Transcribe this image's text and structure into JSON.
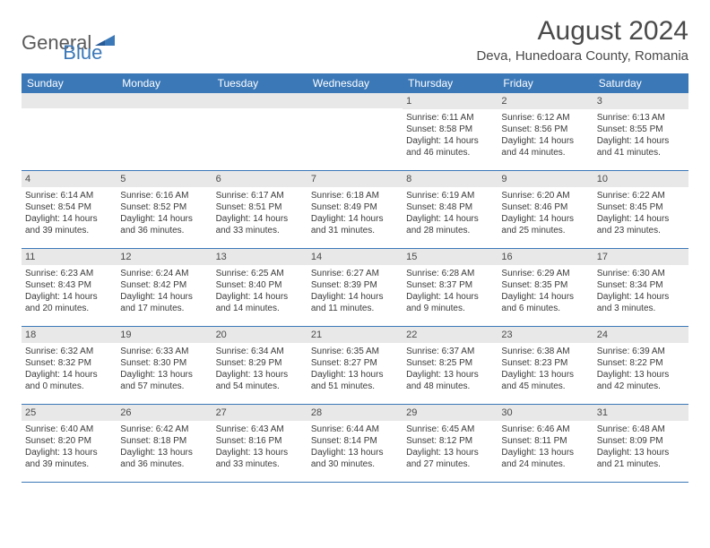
{
  "logo": {
    "part1": "General",
    "part2": "Blue"
  },
  "title": "August 2024",
  "location": "Deva, Hunedoara County, Romania",
  "colors": {
    "header_bg": "#3b78b8",
    "header_text": "#ffffff",
    "date_bar_bg": "#e8e8e8",
    "row_border": "#3b78b8",
    "body_text": "#3a3a3a",
    "title_text": "#4a4a4a",
    "logo_gray": "#5a5a5a",
    "logo_blue": "#3b78b8",
    "page_bg": "#ffffff"
  },
  "dayHeaders": [
    "Sunday",
    "Monday",
    "Tuesday",
    "Wednesday",
    "Thursday",
    "Friday",
    "Saturday"
  ],
  "weeks": [
    [
      {
        "date": "",
        "sunrise": "",
        "sunset": "",
        "daylight": ""
      },
      {
        "date": "",
        "sunrise": "",
        "sunset": "",
        "daylight": ""
      },
      {
        "date": "",
        "sunrise": "",
        "sunset": "",
        "daylight": ""
      },
      {
        "date": "",
        "sunrise": "",
        "sunset": "",
        "daylight": ""
      },
      {
        "date": "1",
        "sunrise": "Sunrise: 6:11 AM",
        "sunset": "Sunset: 8:58 PM",
        "daylight": "Daylight: 14 hours and 46 minutes."
      },
      {
        "date": "2",
        "sunrise": "Sunrise: 6:12 AM",
        "sunset": "Sunset: 8:56 PM",
        "daylight": "Daylight: 14 hours and 44 minutes."
      },
      {
        "date": "3",
        "sunrise": "Sunrise: 6:13 AM",
        "sunset": "Sunset: 8:55 PM",
        "daylight": "Daylight: 14 hours and 41 minutes."
      }
    ],
    [
      {
        "date": "4",
        "sunrise": "Sunrise: 6:14 AM",
        "sunset": "Sunset: 8:54 PM",
        "daylight": "Daylight: 14 hours and 39 minutes."
      },
      {
        "date": "5",
        "sunrise": "Sunrise: 6:16 AM",
        "sunset": "Sunset: 8:52 PM",
        "daylight": "Daylight: 14 hours and 36 minutes."
      },
      {
        "date": "6",
        "sunrise": "Sunrise: 6:17 AM",
        "sunset": "Sunset: 8:51 PM",
        "daylight": "Daylight: 14 hours and 33 minutes."
      },
      {
        "date": "7",
        "sunrise": "Sunrise: 6:18 AM",
        "sunset": "Sunset: 8:49 PM",
        "daylight": "Daylight: 14 hours and 31 minutes."
      },
      {
        "date": "8",
        "sunrise": "Sunrise: 6:19 AM",
        "sunset": "Sunset: 8:48 PM",
        "daylight": "Daylight: 14 hours and 28 minutes."
      },
      {
        "date": "9",
        "sunrise": "Sunrise: 6:20 AM",
        "sunset": "Sunset: 8:46 PM",
        "daylight": "Daylight: 14 hours and 25 minutes."
      },
      {
        "date": "10",
        "sunrise": "Sunrise: 6:22 AM",
        "sunset": "Sunset: 8:45 PM",
        "daylight": "Daylight: 14 hours and 23 minutes."
      }
    ],
    [
      {
        "date": "11",
        "sunrise": "Sunrise: 6:23 AM",
        "sunset": "Sunset: 8:43 PM",
        "daylight": "Daylight: 14 hours and 20 minutes."
      },
      {
        "date": "12",
        "sunrise": "Sunrise: 6:24 AM",
        "sunset": "Sunset: 8:42 PM",
        "daylight": "Daylight: 14 hours and 17 minutes."
      },
      {
        "date": "13",
        "sunrise": "Sunrise: 6:25 AM",
        "sunset": "Sunset: 8:40 PM",
        "daylight": "Daylight: 14 hours and 14 minutes."
      },
      {
        "date": "14",
        "sunrise": "Sunrise: 6:27 AM",
        "sunset": "Sunset: 8:39 PM",
        "daylight": "Daylight: 14 hours and 11 minutes."
      },
      {
        "date": "15",
        "sunrise": "Sunrise: 6:28 AM",
        "sunset": "Sunset: 8:37 PM",
        "daylight": "Daylight: 14 hours and 9 minutes."
      },
      {
        "date": "16",
        "sunrise": "Sunrise: 6:29 AM",
        "sunset": "Sunset: 8:35 PM",
        "daylight": "Daylight: 14 hours and 6 minutes."
      },
      {
        "date": "17",
        "sunrise": "Sunrise: 6:30 AM",
        "sunset": "Sunset: 8:34 PM",
        "daylight": "Daylight: 14 hours and 3 minutes."
      }
    ],
    [
      {
        "date": "18",
        "sunrise": "Sunrise: 6:32 AM",
        "sunset": "Sunset: 8:32 PM",
        "daylight": "Daylight: 14 hours and 0 minutes."
      },
      {
        "date": "19",
        "sunrise": "Sunrise: 6:33 AM",
        "sunset": "Sunset: 8:30 PM",
        "daylight": "Daylight: 13 hours and 57 minutes."
      },
      {
        "date": "20",
        "sunrise": "Sunrise: 6:34 AM",
        "sunset": "Sunset: 8:29 PM",
        "daylight": "Daylight: 13 hours and 54 minutes."
      },
      {
        "date": "21",
        "sunrise": "Sunrise: 6:35 AM",
        "sunset": "Sunset: 8:27 PM",
        "daylight": "Daylight: 13 hours and 51 minutes."
      },
      {
        "date": "22",
        "sunrise": "Sunrise: 6:37 AM",
        "sunset": "Sunset: 8:25 PM",
        "daylight": "Daylight: 13 hours and 48 minutes."
      },
      {
        "date": "23",
        "sunrise": "Sunrise: 6:38 AM",
        "sunset": "Sunset: 8:23 PM",
        "daylight": "Daylight: 13 hours and 45 minutes."
      },
      {
        "date": "24",
        "sunrise": "Sunrise: 6:39 AM",
        "sunset": "Sunset: 8:22 PM",
        "daylight": "Daylight: 13 hours and 42 minutes."
      }
    ],
    [
      {
        "date": "25",
        "sunrise": "Sunrise: 6:40 AM",
        "sunset": "Sunset: 8:20 PM",
        "daylight": "Daylight: 13 hours and 39 minutes."
      },
      {
        "date": "26",
        "sunrise": "Sunrise: 6:42 AM",
        "sunset": "Sunset: 8:18 PM",
        "daylight": "Daylight: 13 hours and 36 minutes."
      },
      {
        "date": "27",
        "sunrise": "Sunrise: 6:43 AM",
        "sunset": "Sunset: 8:16 PM",
        "daylight": "Daylight: 13 hours and 33 minutes."
      },
      {
        "date": "28",
        "sunrise": "Sunrise: 6:44 AM",
        "sunset": "Sunset: 8:14 PM",
        "daylight": "Daylight: 13 hours and 30 minutes."
      },
      {
        "date": "29",
        "sunrise": "Sunrise: 6:45 AM",
        "sunset": "Sunset: 8:12 PM",
        "daylight": "Daylight: 13 hours and 27 minutes."
      },
      {
        "date": "30",
        "sunrise": "Sunrise: 6:46 AM",
        "sunset": "Sunset: 8:11 PM",
        "daylight": "Daylight: 13 hours and 24 minutes."
      },
      {
        "date": "31",
        "sunrise": "Sunrise: 6:48 AM",
        "sunset": "Sunset: 8:09 PM",
        "daylight": "Daylight: 13 hours and 21 minutes."
      }
    ]
  ]
}
